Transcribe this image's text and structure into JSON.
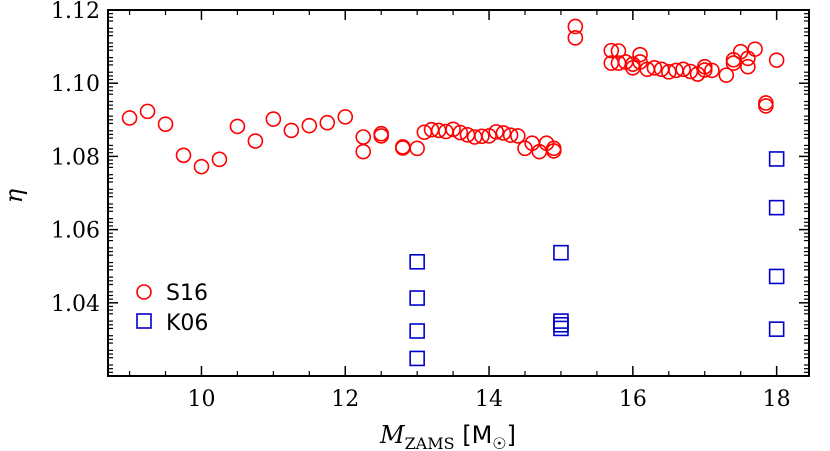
{
  "chart_data": {
    "type": "scatter",
    "title": "",
    "xlabel": "M_ZAMS [M☉]",
    "ylabel": "η",
    "xlim": [
      8.7,
      18.45
    ],
    "ylim": [
      1.02,
      1.12
    ],
    "xticks": [
      10,
      12,
      14,
      16,
      18
    ],
    "xtick_labels": [
      "10",
      "12",
      "14",
      "16",
      "18"
    ],
    "yticks": [
      1.04,
      1.06,
      1.08,
      1.1,
      1.12
    ],
    "ytick_labels": [
      "1.04",
      "1.06",
      "1.08",
      "1.10",
      "1.12"
    ],
    "grid": false,
    "legend_position": "lower-left",
    "series": [
      {
        "name": "S16",
        "marker": "circle",
        "color": "#ff0000",
        "points": [
          [
            9.0,
            1.0905
          ],
          [
            9.25,
            1.0923
          ],
          [
            9.5,
            1.0888
          ],
          [
            9.75,
            1.0803
          ],
          [
            10.0,
            1.0772
          ],
          [
            10.25,
            1.0792
          ],
          [
            10.5,
            1.0882
          ],
          [
            10.75,
            1.0842
          ],
          [
            11.0,
            1.0902
          ],
          [
            11.25,
            1.0871
          ],
          [
            11.5,
            1.0884
          ],
          [
            11.75,
            1.0892
          ],
          [
            12.0,
            1.0908
          ],
          [
            12.25,
            1.0853
          ],
          [
            12.25,
            1.0813
          ],
          [
            12.5,
            1.0862
          ],
          [
            12.5,
            1.0856
          ],
          [
            12.8,
            1.0826
          ],
          [
            12.8,
            1.0823
          ],
          [
            13.0,
            1.0822
          ],
          [
            13.1,
            1.0866
          ],
          [
            13.2,
            1.0873
          ],
          [
            13.3,
            1.0871
          ],
          [
            13.4,
            1.0868
          ],
          [
            13.5,
            1.0874
          ],
          [
            13.6,
            1.0865
          ],
          [
            13.7,
            1.0859
          ],
          [
            13.8,
            1.0853
          ],
          [
            13.9,
            1.0855
          ],
          [
            14.0,
            1.0856
          ],
          [
            14.1,
            1.0867
          ],
          [
            14.2,
            1.0864
          ],
          [
            14.3,
            1.0858
          ],
          [
            14.4,
            1.0856
          ],
          [
            14.5,
            1.0822
          ],
          [
            14.6,
            1.0836
          ],
          [
            14.7,
            1.0813
          ],
          [
            14.8,
            1.0836
          ],
          [
            14.9,
            1.0822
          ],
          [
            14.9,
            1.0815
          ],
          [
            15.2,
            1.1155
          ],
          [
            15.2,
            1.1124
          ],
          [
            15.7,
            1.1089
          ],
          [
            15.7,
            1.1055
          ],
          [
            15.8,
            1.1088
          ],
          [
            15.8,
            1.1055
          ],
          [
            15.9,
            1.1058
          ],
          [
            16.0,
            1.1042
          ],
          [
            16.0,
            1.1052
          ],
          [
            16.1,
            1.1078
          ],
          [
            16.1,
            1.1058
          ],
          [
            16.2,
            1.1038
          ],
          [
            16.3,
            1.1042
          ],
          [
            16.4,
            1.1038
          ],
          [
            16.5,
            1.1031
          ],
          [
            16.6,
            1.1035
          ],
          [
            16.7,
            1.1038
          ],
          [
            16.8,
            1.1032
          ],
          [
            16.9,
            1.1025
          ],
          [
            17.0,
            1.1045
          ],
          [
            17.0,
            1.1036
          ],
          [
            17.1,
            1.1035
          ],
          [
            17.3,
            1.1022
          ],
          [
            17.4,
            1.1064
          ],
          [
            17.4,
            1.1055
          ],
          [
            17.5,
            1.1086
          ],
          [
            17.6,
            1.1068
          ],
          [
            17.6,
            1.1045
          ],
          [
            17.7,
            1.1093
          ],
          [
            17.85,
            1.0946
          ],
          [
            17.85,
            1.0938
          ],
          [
            18.0,
            1.1063
          ]
        ]
      },
      {
        "name": "K06",
        "marker": "square",
        "color": "#0000cc",
        "points": [
          [
            13.0,
            1.0512
          ],
          [
            13.0,
            1.0413
          ],
          [
            13.0,
            1.0323
          ],
          [
            13.0,
            1.0248
          ],
          [
            15.0,
            1.0537
          ],
          [
            15.0,
            1.035
          ],
          [
            15.0,
            1.034
          ],
          [
            15.0,
            1.033
          ],
          [
            18.0,
            1.0793
          ],
          [
            18.0,
            1.066
          ],
          [
            18.0,
            1.0472
          ],
          [
            18.0,
            1.0328
          ]
        ]
      }
    ]
  }
}
